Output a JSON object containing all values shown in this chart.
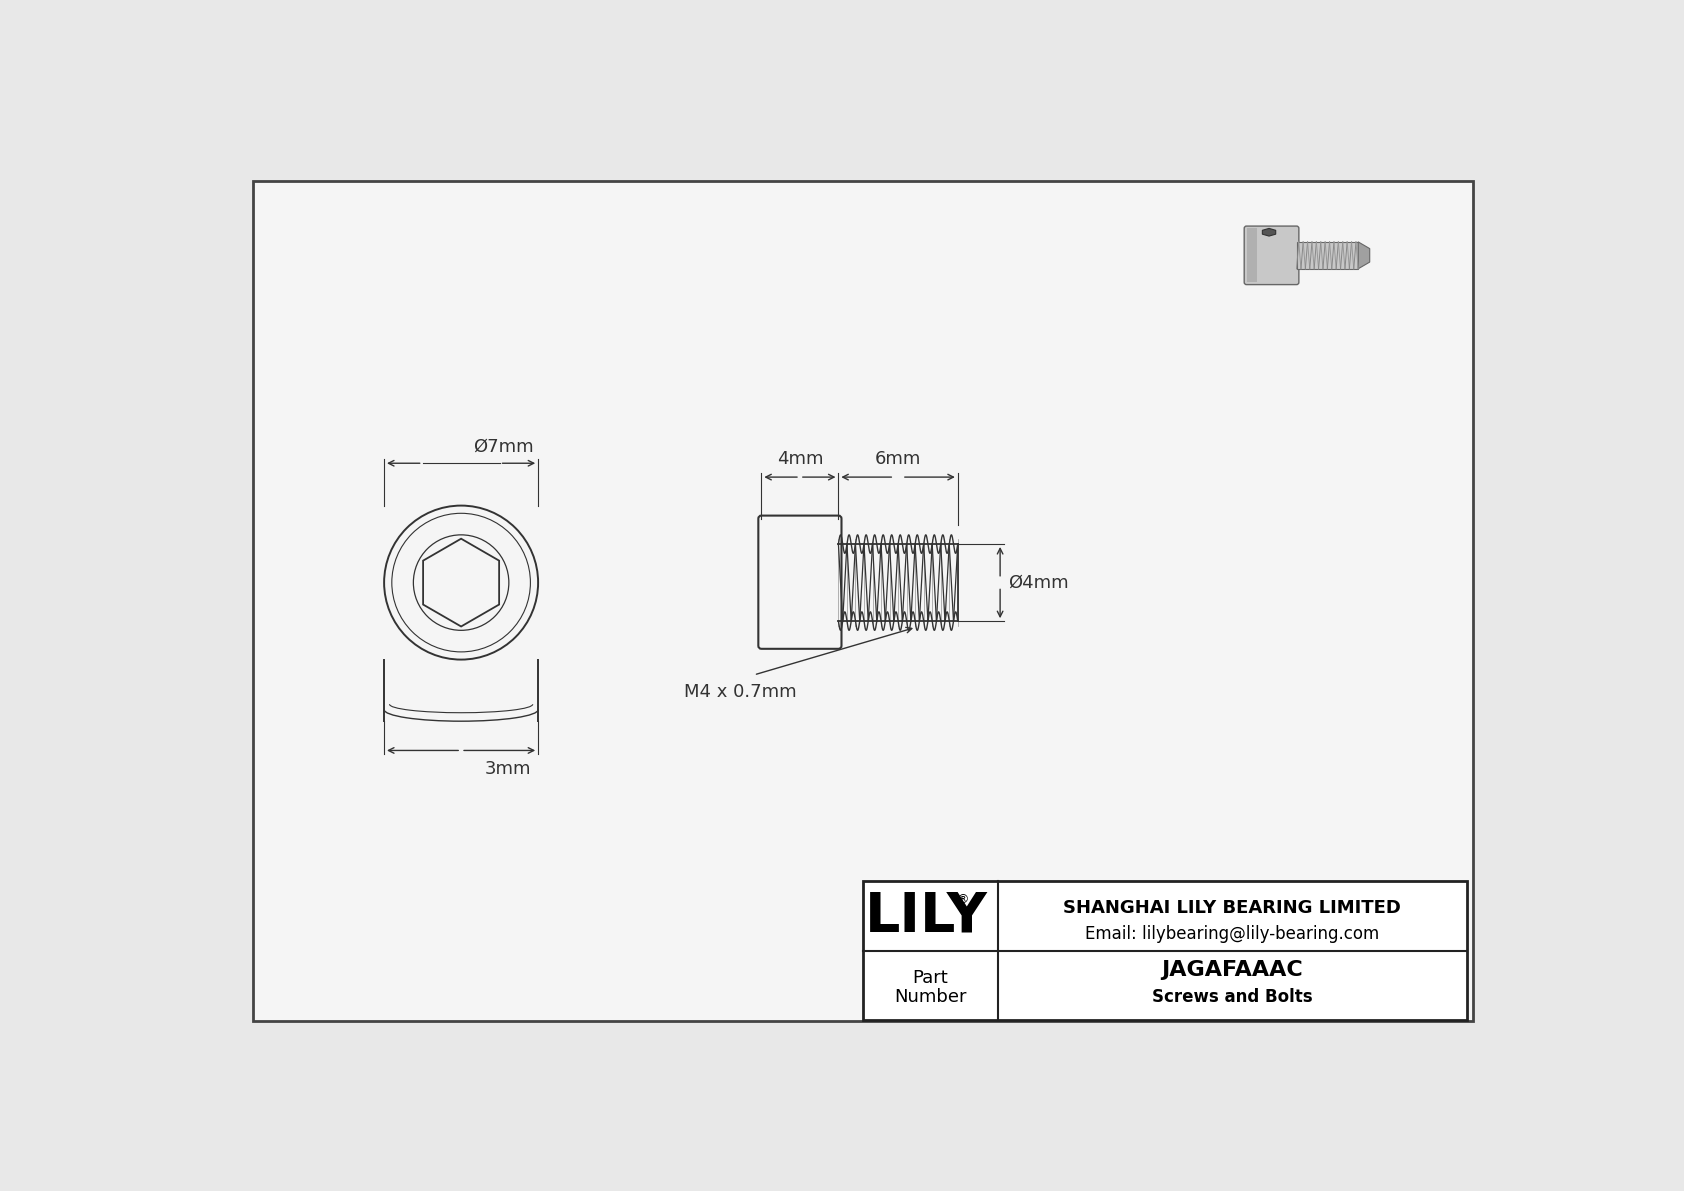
{
  "bg_color": "#e8e8e8",
  "drawing_bg": "#f5f5f5",
  "border_color": "#444444",
  "line_color": "#333333",
  "dim_color": "#333333",
  "title_company": "SHANGHAI LILY BEARING LIMITED",
  "title_email": "Email: lilybearing@lily-bearing.com",
  "part_label": "Part\nNumber",
  "part_number": "JAGAFAAAC",
  "part_type": "Screws and Bolts",
  "lily_text": "LILY",
  "dim_7mm": "Ø7mm",
  "dim_3mm": "3mm",
  "dim_4mm_side": "4mm",
  "dim_6mm": "6mm",
  "dim_dia4mm": "Ø4mm",
  "dim_thread": "M4 x 0.7mm",
  "screw3d_color1": "#c8c8c8",
  "screw3d_color2": "#a0a0a0",
  "screw3d_color3": "#888888"
}
